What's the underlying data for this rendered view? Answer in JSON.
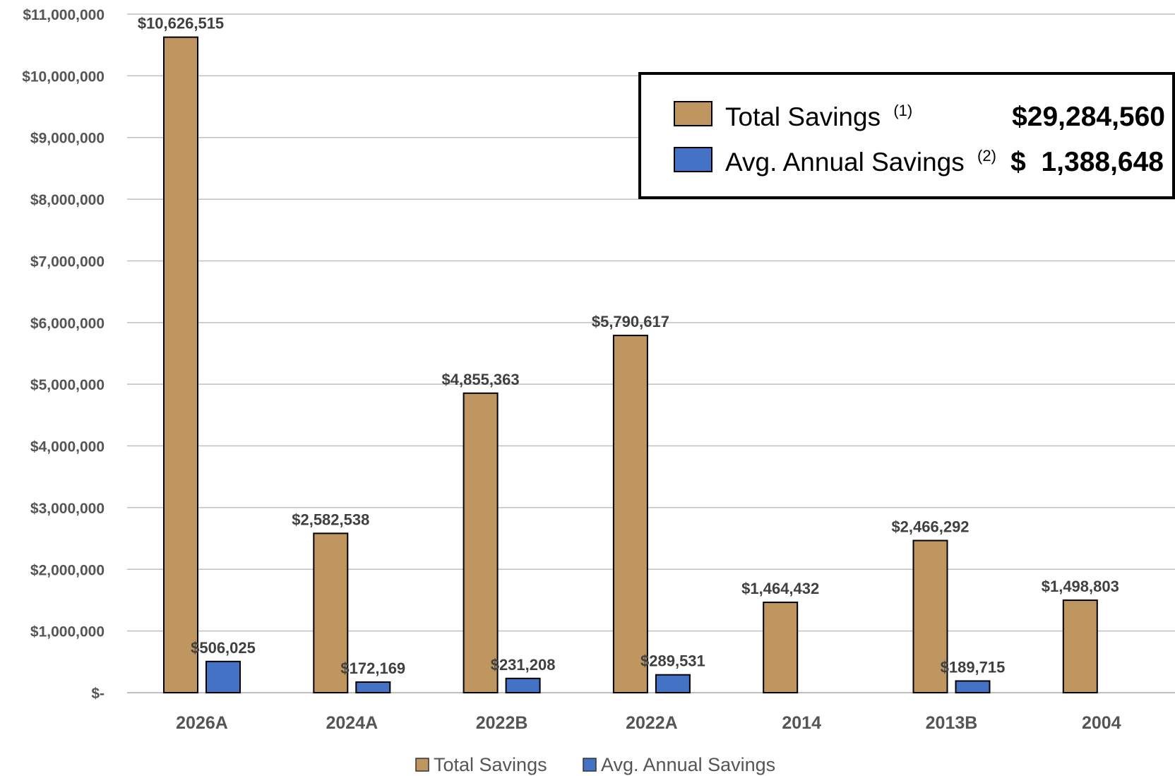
{
  "chart_data": {
    "type": "bar",
    "categories": [
      "2026A",
      "2024A",
      "2022B",
      "2022A",
      "2014",
      "2013B",
      "2004"
    ],
    "series": [
      {
        "name": "Total Savings",
        "color": "#bf9660",
        "values": [
          10626515,
          2582538,
          4855363,
          5790617,
          1464432,
          2466292,
          1498803
        ],
        "labels": [
          "$10,626,515",
          "$2,582,538",
          "$4,855,363",
          "$5,790,617",
          "$1,464,432",
          "$2,466,292",
          "$1,498,803"
        ]
      },
      {
        "name": "Avg. Annual Savings",
        "color": "#4472c4",
        "values": [
          506025,
          172169,
          231208,
          289531,
          null,
          189715,
          null
        ],
        "labels": [
          "$506,025",
          "$172,169",
          "$231,208",
          "$289,531",
          null,
          "$189,715",
          null
        ]
      }
    ],
    "ylim": [
      0,
      11000000
    ],
    "yticks": [
      0,
      1000000,
      2000000,
      3000000,
      4000000,
      5000000,
      6000000,
      7000000,
      8000000,
      9000000,
      10000000,
      11000000
    ],
    "ytick_labels": [
      "$-",
      "$1,000,000",
      "$2,000,000",
      "$3,000,000",
      "$4,000,000",
      "$5,000,000",
      "$6,000,000",
      "$7,000,000",
      "$8,000,000",
      "$9,000,000",
      "$10,000,000",
      "$11,000,000"
    ],
    "grid": true,
    "legend_position": "bottom",
    "callout": {
      "rows": [
        {
          "label": "Total Savings",
          "note": "(1)",
          "value": "$29,284,560",
          "color": "#bf9660"
        },
        {
          "label": "Avg. Annual Savings",
          "note": "(2)",
          "value": "$  1,388,648",
          "color": "#4472c4"
        }
      ]
    }
  }
}
